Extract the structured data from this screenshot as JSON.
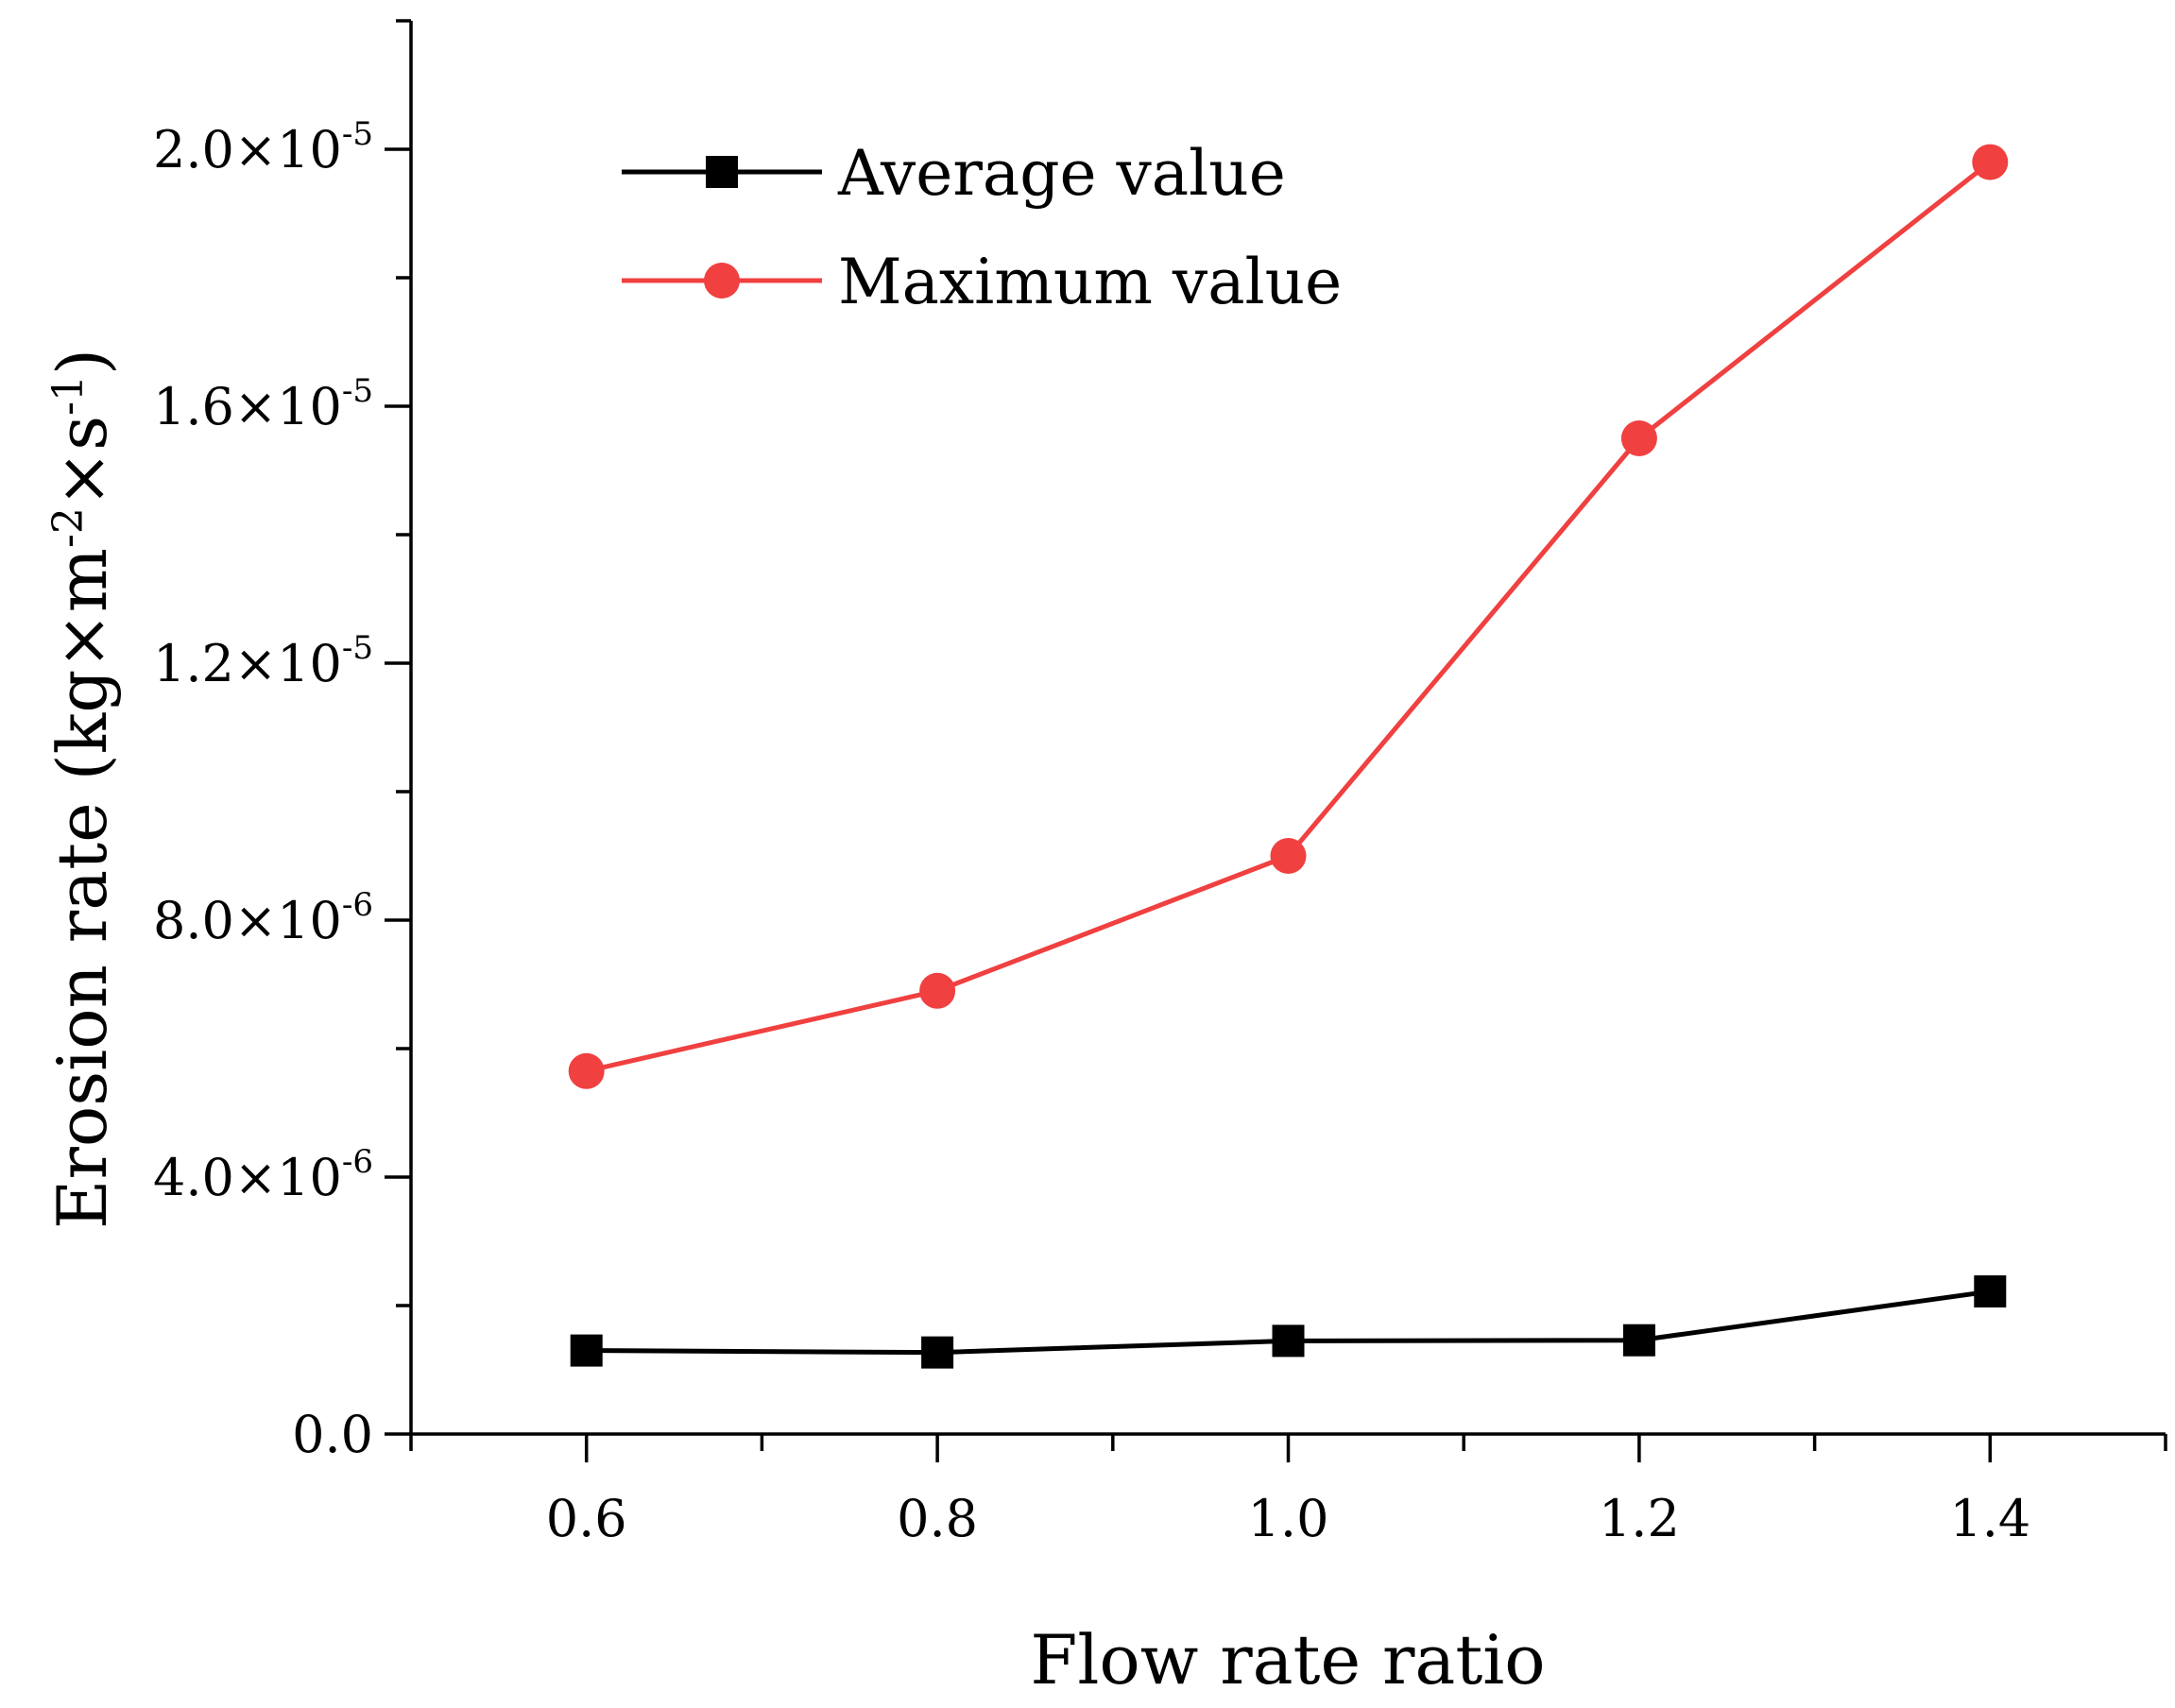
{
  "chart_data": {
    "type": "line",
    "title": "",
    "xlabel": "Flow rate ratio",
    "ylabel": {
      "text": "Erosion rate (kg×m",
      "sup1": "-2",
      "mid": "×s",
      "sup2": "-1",
      "end": ")"
    },
    "xlim": [
      0.5,
      1.5
    ],
    "ylim": [
      0,
      2.2e-05
    ],
    "x_ticks": [
      {
        "value": 0.6,
        "label": "0.6"
      },
      {
        "value": 0.8,
        "label": "0.8"
      },
      {
        "value": 1.0,
        "label": "1.0"
      },
      {
        "value": 1.2,
        "label": "1.2"
      },
      {
        "value": 1.4,
        "label": "1.4"
      }
    ],
    "x_minor_ticks": [
      0.5,
      0.7,
      0.9,
      1.1,
      1.3,
      1.5
    ],
    "y_ticks": [
      {
        "value": 0,
        "mantissa": "0.0",
        "exp": ""
      },
      {
        "value": 4e-06,
        "mantissa": "4.0×10",
        "exp": "-6"
      },
      {
        "value": 8e-06,
        "mantissa": "8.0×10",
        "exp": "-6"
      },
      {
        "value": 1.2e-05,
        "mantissa": "1.2×10",
        "exp": "-5"
      },
      {
        "value": 1.6e-05,
        "mantissa": "1.6×10",
        "exp": "-5"
      },
      {
        "value": 2e-05,
        "mantissa": "2.0×10",
        "exp": "-5"
      }
    ],
    "y_minor_ticks": [
      2e-06,
      6e-06,
      1e-05,
      1.4e-05,
      1.8e-05,
      2.2e-05
    ],
    "legend_position": "top-left",
    "series": [
      {
        "name": "Average value",
        "color": "#000000",
        "marker": "square",
        "x": [
          0.6,
          0.8,
          1.0,
          1.2,
          1.4
        ],
        "values": [
          1.3e-06,
          1.27e-06,
          1.45e-06,
          1.46e-06,
          2.22e-06
        ]
      },
      {
        "name": "Maximum value",
        "color": "#f04040",
        "marker": "circle",
        "x": [
          0.6,
          0.8,
          1.0,
          1.2,
          1.4
        ],
        "values": [
          5.65e-06,
          6.9e-06,
          9e-06,
          1.55e-05,
          1.98e-05
        ]
      }
    ]
  }
}
